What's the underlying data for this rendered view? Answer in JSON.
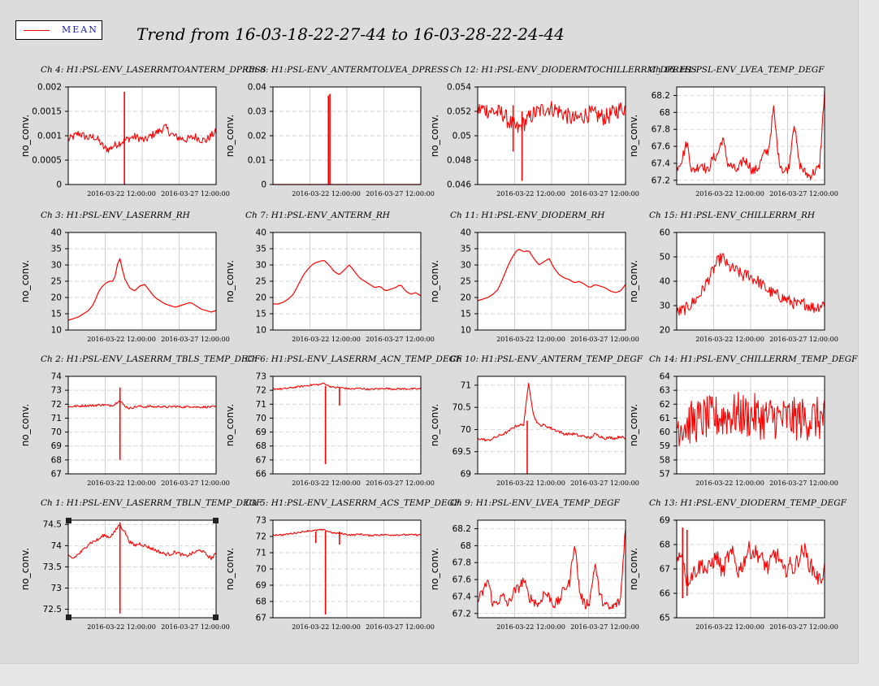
{
  "legend": {
    "label": "MEAN",
    "color": "#ff0000"
  },
  "title": "Trend from 16-03-18-22-27-44 to 16-03-28-22-24-44",
  "x_tick_labels": [
    "2016-03-22 12:00:00",
    "2016-03-27 12:00:00"
  ],
  "chart_data": [
    {
      "id": "ch4",
      "type": "line",
      "title": "Ch 4: H1:PSL-ENV_LASERRMTOANTERM_DPRESS",
      "ylabel": "no_conv.",
      "ylim": [
        0,
        0.002
      ],
      "yticks": [
        "0",
        "0.0005",
        "0.001",
        "0.0015",
        "0.002"
      ],
      "series": [
        {
          "values": [
            0.00092,
            0.00098,
            0.00105,
            0.001,
            0.00095,
            0.00098,
            0.0009,
            0.00075,
            0.00072,
            0.0008,
            0.00085,
            0.0009,
            0.00095,
            0.00098,
            0.00095,
            0.0009,
            0.00098,
            0.00105,
            0.0011,
            0.00118,
            0.00105,
            0.00098,
            0.00095,
            0.00092,
            0.00095,
            0.00098,
            0.00092,
            0.0009,
            0.001,
            0.00108
          ]
        }
      ],
      "spikes": [
        {
          "at": 0.38,
          "lo": 0.0,
          "hi": 0.0019
        }
      ],
      "noisy": true
    },
    {
      "id": "ch8",
      "type": "line",
      "title": "Ch 8: H1:PSL-ENV_ANTERMTOLVEA_DPRESS",
      "ylabel": "no_conv.",
      "ylim": [
        0,
        0.04
      ],
      "yticks": [
        "0",
        "0.01",
        "0.02",
        "0.03",
        "0.04"
      ],
      "series": [
        {
          "values": [
            0,
            0,
            0,
            0,
            0,
            0,
            0,
            0,
            0,
            0,
            0,
            0,
            0,
            0,
            0,
            0,
            0,
            0,
            0,
            0,
            0,
            0,
            0,
            0,
            0,
            0,
            0,
            0,
            0,
            0
          ]
        }
      ],
      "spikes": [
        {
          "at": 0.375,
          "lo": 0,
          "hi": 0.0365
        },
        {
          "at": 0.385,
          "lo": 0,
          "hi": 0.0372
        }
      ],
      "noisy": false
    },
    {
      "id": "ch12",
      "type": "line",
      "title": "Ch 12: H1:PSL-ENV_DIODERMTOCHILLERRM_DPRESS",
      "ylabel": "no_conv.",
      "ylim": [
        0.046,
        0.054
      ],
      "yticks": [
        "0.046",
        "0.048",
        "0.05",
        "0.052",
        "0.054"
      ],
      "series": [
        {
          "values": [
            0.0521,
            0.0522,
            0.0521,
            0.052,
            0.0519,
            0.0518,
            0.0512,
            0.0508,
            0.0505,
            0.051,
            0.0514,
            0.0518,
            0.052,
            0.0522,
            0.0523,
            0.0522,
            0.052,
            0.0518,
            0.0515,
            0.0513,
            0.0515,
            0.0517,
            0.0518,
            0.0517,
            0.0516,
            0.0515,
            0.0517,
            0.052,
            0.0522,
            0.0523
          ]
        }
      ],
      "spikes": [
        {
          "at": 0.24,
          "lo": 0.0487,
          "hi": 0.0525
        },
        {
          "at": 0.3,
          "lo": 0.0463,
          "hi": 0.052
        }
      ],
      "noisy": true,
      "noise": 0.0007
    },
    {
      "id": "ch16",
      "type": "line",
      "title": "Ch 16: H1:PSL-ENV_LVEA_TEMP_DEGF",
      "ylabel": "no_conv.",
      "ylim": [
        67.15,
        68.3
      ],
      "yticks": [
        "67.2",
        "67.4",
        "67.6",
        "67.8",
        "68",
        "68.2"
      ],
      "series": [
        {
          "values": [
            67.35,
            67.45,
            67.65,
            67.3,
            67.35,
            67.4,
            67.3,
            67.45,
            67.5,
            67.7,
            67.4,
            67.35,
            67.3,
            67.45,
            67.4,
            67.3,
            67.35,
            67.5,
            67.55,
            68.05,
            67.45,
            67.3,
            67.35,
            67.9,
            67.4,
            67.3,
            67.25,
            67.3,
            67.35,
            68.25
          ]
        }
      ],
      "spikes": [],
      "noisy": true,
      "noise": 0.06
    },
    {
      "id": "ch3",
      "type": "line",
      "title": "Ch 3: H1:PSL-ENV_LASERRM_RH",
      "ylabel": "no_conv.",
      "ylim": [
        10,
        40
      ],
      "yticks": [
        "10",
        "15",
        "20",
        "25",
        "30",
        "35",
        "40"
      ],
      "series": [
        {
          "values": [
            13,
            13.5,
            14,
            15,
            16,
            18,
            22,
            24,
            25,
            25,
            33,
            26,
            23,
            22,
            23.5,
            24,
            22,
            20,
            19,
            18,
            17.5,
            17,
            17.5,
            18,
            18.5,
            17.5,
            16.5,
            16,
            15.5,
            16
          ]
        }
      ],
      "spikes": [],
      "noisy": false
    },
    {
      "id": "ch7",
      "type": "line",
      "title": "Ch 7: H1:PSL-ENV_ANTERM_RH",
      "ylabel": "no_conv.",
      "ylim": [
        10,
        40
      ],
      "yticks": [
        "10",
        "15",
        "20",
        "25",
        "30",
        "35",
        "40"
      ],
      "series": [
        {
          "values": [
            18,
            18,
            18.5,
            19.5,
            21,
            24,
            27,
            29,
            30.5,
            31,
            31.5,
            30,
            28,
            27,
            28.5,
            30,
            28,
            26,
            25,
            24,
            23,
            23.5,
            22,
            22.5,
            23,
            24,
            22,
            21,
            21.5,
            20.5
          ]
        }
      ],
      "spikes": [],
      "noisy": false
    },
    {
      "id": "ch11",
      "type": "line",
      "title": "Ch 11: H1:PSL-ENV_DIODERM_RH",
      "ylabel": "no_conv.",
      "ylim": [
        10,
        40
      ],
      "yticks": [
        "10",
        "15",
        "20",
        "25",
        "30",
        "35",
        "40"
      ],
      "series": [
        {
          "values": [
            19,
            19.5,
            20,
            21,
            22.5,
            26,
            30,
            33,
            35,
            34,
            34.5,
            32,
            30,
            31,
            32,
            29,
            27,
            26,
            25.5,
            24.5,
            25,
            24,
            23,
            24,
            23.5,
            23,
            22,
            21.5,
            22,
            24
          ]
        }
      ],
      "spikes": [],
      "noisy": false
    },
    {
      "id": "ch15",
      "type": "line",
      "title": "Ch 15: H1:PSL-ENV_CHILLERRM_RH",
      "ylabel": "no_conv.",
      "ylim": [
        20,
        60
      ],
      "yticks": [
        "20",
        "30",
        "40",
        "50",
        "60"
      ],
      "series": [
        {
          "values": [
            27,
            28,
            29,
            31,
            33,
            36,
            40,
            44,
            48,
            50,
            46,
            45,
            44,
            42,
            43,
            41,
            40,
            38,
            36,
            35,
            34,
            33,
            32,
            31,
            30,
            31,
            30,
            29,
            30,
            31
          ]
        }
      ],
      "spikes": [],
      "noisy": true,
      "noise": 2.5
    },
    {
      "id": "ch2",
      "type": "line",
      "title": "Ch 2: H1:PSL-ENV_LASERRM_TBLS_TEMP_DEGF",
      "ylabel": "no_conv.",
      "ylim": [
        67,
        74
      ],
      "yticks": [
        "67",
        "68",
        "69",
        "70",
        "71",
        "72",
        "73",
        "74"
      ],
      "series": [
        {
          "values": [
            71.8,
            71.85,
            71.85,
            71.9,
            71.9,
            71.9,
            71.95,
            71.95,
            71.9,
            71.95,
            72.3,
            71.9,
            71.7,
            71.8,
            71.85,
            71.8,
            71.85,
            71.8,
            71.85,
            71.8,
            71.8,
            71.85,
            71.8,
            71.8,
            71.85,
            71.8,
            71.8,
            71.8,
            71.8,
            71.8
          ]
        }
      ],
      "spikes": [
        {
          "at": 0.35,
          "lo": 68,
          "hi": 73.2
        }
      ],
      "noisy": true,
      "noise": 0.08
    },
    {
      "id": "ch6",
      "type": "line",
      "title": "Ch 6: H1:PSL-ENV_LASERRM_ACN_TEMP_DEGF",
      "ylabel": "no_conv.",
      "ylim": [
        66,
        73
      ],
      "yticks": [
        "66",
        "67",
        "68",
        "69",
        "70",
        "71",
        "72",
        "73"
      ],
      "series": [
        {
          "values": [
            72.1,
            72.1,
            72.1,
            72.15,
            72.2,
            72.25,
            72.3,
            72.35,
            72.4,
            72.4,
            72.5,
            72.3,
            72.2,
            72.2,
            72.15,
            72.1,
            72.1,
            72.15,
            72.1,
            72.05,
            72.1,
            72.1,
            72.15,
            72.1,
            72.1,
            72.1,
            72.1,
            72.1,
            72.1,
            72.1
          ]
        }
      ],
      "spikes": [
        {
          "at": 0.355,
          "lo": 66.7,
          "hi": 72.3
        },
        {
          "at": 0.45,
          "lo": 70.9,
          "hi": 72.2
        }
      ],
      "noisy": true,
      "noise": 0.06
    },
    {
      "id": "ch10",
      "type": "line",
      "title": "Ch 10: H1:PSL-ENV_ANTERM_TEMP_DEGF",
      "ylabel": "no_conv.",
      "ylim": [
        69,
        71.2
      ],
      "yticks": [
        "69",
        "69.5",
        "70",
        "70.5",
        "71"
      ],
      "series": [
        {
          "values": [
            69.8,
            69.78,
            69.75,
            69.8,
            69.85,
            69.9,
            69.95,
            70.05,
            70.1,
            70.1,
            71.05,
            70.3,
            70.1,
            70.1,
            70.05,
            70,
            69.95,
            69.9,
            69.9,
            69.9,
            69.85,
            69.85,
            69.8,
            69.9,
            69.85,
            69.8,
            69.82,
            69.8,
            69.85,
            69.78
          ]
        }
      ],
      "spikes": [
        {
          "at": 0.335,
          "lo": 69.0,
          "hi": 70.2
        }
      ],
      "noisy": true,
      "noise": 0.03
    },
    {
      "id": "ch14",
      "type": "line",
      "title": "Ch 14: H1:PSL-ENV_CHILLERRM_TEMP_DEGF",
      "ylabel": "no_conv.",
      "ylim": [
        57,
        64
      ],
      "yticks": [
        "57",
        "58",
        "59",
        "60",
        "61",
        "62",
        "63",
        "64"
      ],
      "series": [
        {
          "values": [
            60.5,
            60.6,
            60.6,
            60.7,
            60.8,
            60.9,
            61,
            61,
            61.1,
            61.1,
            61.2,
            61.2,
            61.3,
            61.2,
            61.1,
            61.2,
            61.1,
            61,
            61,
            61.1,
            61,
            60.9,
            61,
            60.9,
            61,
            60.9,
            61,
            61,
            60.9,
            61
          ]
        }
      ],
      "spikes": [],
      "noisy": true,
      "noise": 1.6
    },
    {
      "id": "ch1",
      "type": "line",
      "title": "Ch 1: H1:PSL-ENV_LASERRM_TBLN_TEMP_DEGF",
      "ylabel": "no_conv.",
      "ylim": [
        72.3,
        74.6
      ],
      "yticks": [
        "72.5",
        "73",
        "73.5",
        "74",
        "74.5"
      ],
      "series": [
        {
          "values": [
            73.75,
            73.7,
            73.8,
            73.9,
            74.05,
            74.1,
            74.15,
            74.25,
            74.2,
            74.3,
            74.5,
            74.35,
            74.1,
            74,
            74.05,
            74,
            73.95,
            73.9,
            73.85,
            73.8,
            73.8,
            73.85,
            73.8,
            73.75,
            73.8,
            73.85,
            73.9,
            73.8,
            73.7,
            73.8
          ]
        }
      ],
      "spikes": [
        {
          "at": 0.35,
          "lo": 72.4,
          "hi": 74.55
        }
      ],
      "noisy": true,
      "noise": 0.04
    },
    {
      "id": "ch5",
      "type": "line",
      "title": "Ch 5: H1:PSL-ENV_LASERRM_ACS_TEMP_DEGF",
      "ylabel": "no_conv.",
      "ylim": [
        67,
        73
      ],
      "yticks": [
        "67",
        "68",
        "69",
        "70",
        "71",
        "72",
        "73"
      ],
      "series": [
        {
          "values": [
            72.1,
            72.1,
            72.1,
            72.15,
            72.2,
            72.25,
            72.3,
            72.35,
            72.35,
            72.4,
            72.4,
            72.3,
            72.2,
            72.2,
            72.15,
            72.1,
            72.1,
            72.15,
            72.1,
            72.05,
            72.1,
            72.1,
            72.1,
            72.1,
            72.1,
            72.1,
            72.1,
            72.1,
            72.1,
            72.1
          ]
        }
      ],
      "spikes": [
        {
          "at": 0.29,
          "lo": 71.6,
          "hi": 72.3
        },
        {
          "at": 0.355,
          "lo": 67.2,
          "hi": 72.3
        },
        {
          "at": 0.45,
          "lo": 71.5,
          "hi": 72.3
        }
      ],
      "noisy": true,
      "noise": 0.05
    },
    {
      "id": "ch9",
      "type": "line",
      "title": "Ch 9: H1:PSL-ENV_LVEA_TEMP_DEGF",
      "ylabel": "no_conv.",
      "ylim": [
        67.15,
        68.3
      ],
      "yticks": [
        "67.2",
        "67.4",
        "67.6",
        "67.8",
        "68",
        "68.2"
      ],
      "series": [
        {
          "values": [
            67.35,
            67.45,
            67.6,
            67.3,
            67.35,
            67.4,
            67.3,
            67.45,
            67.5,
            67.6,
            67.4,
            67.35,
            67.3,
            67.45,
            67.4,
            67.3,
            67.35,
            67.5,
            67.55,
            68.05,
            67.45,
            67.3,
            67.35,
            67.8,
            67.4,
            67.3,
            67.25,
            67.3,
            67.35,
            68.25
          ]
        }
      ],
      "spikes": [],
      "noisy": true,
      "noise": 0.06
    },
    {
      "id": "ch13",
      "type": "line",
      "title": "Ch 13: H1:PSL-ENV_DIODERM_TEMP_DEGF",
      "ylabel": "no_conv.",
      "ylim": [
        65,
        69
      ],
      "yticks": [
        "65",
        "66",
        "67",
        "68",
        "69"
      ],
      "series": [
        {
          "values": [
            67.2,
            67.8,
            66.5,
            66.8,
            67,
            67.2,
            66.9,
            67.3,
            67.5,
            66.8,
            67.5,
            67.6,
            66.9,
            67.2,
            67.8,
            67.7,
            67.6,
            67.3,
            67,
            67.6,
            67.5,
            66.8,
            67.2,
            67,
            67.5,
            67.8,
            67.2,
            66.9,
            66.5,
            67
          ]
        }
      ],
      "spikes": [
        {
          "at": 0.04,
          "lo": 65.8,
          "hi": 68.7
        },
        {
          "at": 0.07,
          "lo": 65.9,
          "hi": 68.6
        }
      ],
      "noisy": true,
      "noise": 0.35
    }
  ]
}
